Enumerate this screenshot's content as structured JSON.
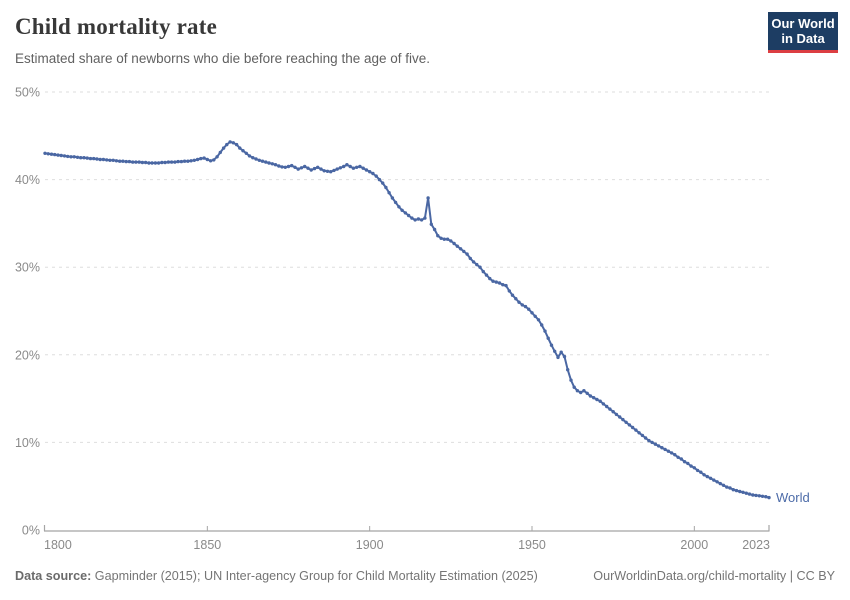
{
  "header": {
    "title": "Child mortality rate",
    "subtitle": "Estimated share of newborns who die before reaching the age of five."
  },
  "logo": {
    "line1": "Our World",
    "line2": "in Data"
  },
  "chart_data": {
    "type": "line",
    "title": "Child mortality rate",
    "xlabel": "",
    "ylabel": "",
    "xlim": [
      1800,
      2023
    ],
    "ylim": [
      0,
      50
    ],
    "x_ticks": [
      1800,
      1850,
      1900,
      1950,
      2000,
      2023
    ],
    "y_ticks": [
      0,
      10,
      20,
      30,
      40,
      50
    ],
    "y_tick_suffix": "%",
    "grid": "dashed-horizontal",
    "legend_position": "end-of-line",
    "line_color": "#4a67a3",
    "end_label_color": "#4c6ba8",
    "axis_label_color": "#8a8a8a",
    "gridline_color": "#dedede",
    "axis_line_color": "#a5a5a5",
    "series": [
      {
        "name": "World",
        "start_year": 1800,
        "end_year": 2023,
        "values": [
          43.0,
          42.95,
          42.9,
          42.85,
          42.8,
          42.75,
          42.7,
          42.65,
          42.6,
          42.6,
          42.55,
          42.5,
          42.5,
          42.45,
          42.4,
          42.4,
          42.35,
          42.3,
          42.3,
          42.25,
          42.2,
          42.2,
          42.15,
          42.1,
          42.1,
          42.05,
          42.05,
          42.0,
          42.0,
          42.0,
          41.95,
          41.95,
          41.9,
          41.9,
          41.9,
          41.9,
          41.95,
          41.95,
          42.0,
          42.0,
          42.0,
          42.05,
          42.05,
          42.1,
          42.1,
          42.15,
          42.2,
          42.3,
          42.4,
          42.45,
          42.3,
          42.15,
          42.25,
          42.6,
          43.1,
          43.6,
          44.0,
          44.3,
          44.2,
          44.0,
          43.6,
          43.3,
          43.0,
          42.7,
          42.5,
          42.35,
          42.2,
          42.1,
          42.0,
          41.9,
          41.8,
          41.7,
          41.55,
          41.45,
          41.4,
          41.5,
          41.6,
          41.4,
          41.2,
          41.35,
          41.5,
          41.3,
          41.1,
          41.25,
          41.4,
          41.2,
          41.0,
          40.95,
          40.9,
          41.05,
          41.2,
          41.35,
          41.5,
          41.7,
          41.5,
          41.3,
          41.4,
          41.5,
          41.3,
          41.1,
          40.9,
          40.7,
          40.4,
          40.0,
          39.6,
          39.1,
          38.5,
          37.9,
          37.4,
          36.9,
          36.5,
          36.2,
          35.9,
          35.6,
          35.4,
          35.5,
          35.4,
          35.6,
          37.9,
          34.9,
          34.3,
          33.6,
          33.3,
          33.2,
          33.2,
          33.0,
          32.7,
          32.4,
          32.1,
          31.8,
          31.5,
          31.0,
          30.6,
          30.3,
          30.0,
          29.5,
          29.1,
          28.7,
          28.4,
          28.3,
          28.2,
          28.0,
          27.9,
          27.3,
          26.8,
          26.4,
          26.0,
          25.7,
          25.5,
          25.2,
          24.8,
          24.4,
          24.0,
          23.4,
          22.7,
          21.9,
          21.1,
          20.4,
          19.7,
          20.3,
          19.8,
          18.3,
          17.1,
          16.3,
          15.9,
          15.7,
          15.9,
          15.6,
          15.3,
          15.1,
          14.9,
          14.7,
          14.4,
          14.1,
          13.8,
          13.5,
          13.2,
          12.9,
          12.6,
          12.3,
          12.0,
          11.7,
          11.4,
          11.1,
          10.8,
          10.5,
          10.2,
          10.0,
          9.8,
          9.6,
          9.4,
          9.2,
          9.0,
          8.8,
          8.6,
          8.3,
          8.1,
          7.8,
          7.6,
          7.3,
          7.1,
          6.8,
          6.6,
          6.3,
          6.1,
          5.9,
          5.7,
          5.5,
          5.3,
          5.1,
          4.9,
          4.8,
          4.6,
          4.5,
          4.4,
          4.3,
          4.2,
          4.1,
          4.0,
          3.95,
          3.9,
          3.85,
          3.8,
          3.7
        ]
      }
    ]
  },
  "footer": {
    "source_label": "Data source:",
    "source_text": " Gapminder (2015); UN Inter-agency Group for Child Mortality Estimation (2025)",
    "link_text": "OurWorldinData.org/child-mortality | CC BY"
  }
}
